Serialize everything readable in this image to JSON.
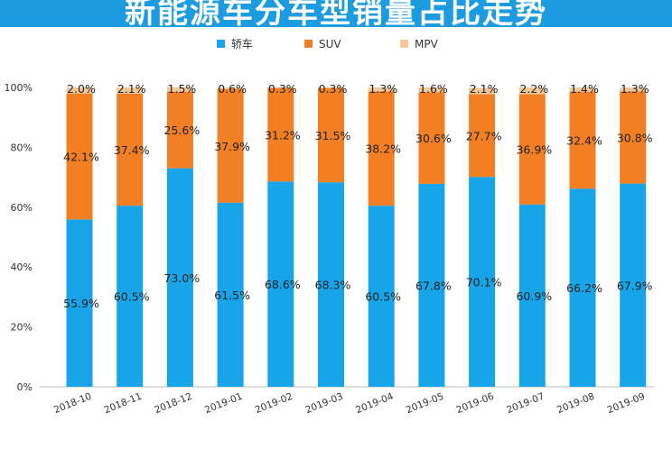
{
  "title": "新能源车分车型销量占比走势",
  "colors": {
    "title_bg": "#1b9be0"
  },
  "chart_data": {
    "type": "bar",
    "stacked": true,
    "categories": [
      "2018-10",
      "2018-11",
      "2018-12",
      "2019-01",
      "2019-02",
      "2019-03",
      "2019-04",
      "2019-05",
      "2019-06",
      "2019-07",
      "2019-08",
      "2019-09"
    ],
    "series": [
      {
        "name": "轿车",
        "color": "#18a4e8",
        "values": [
          55.9,
          60.5,
          73.0,
          61.5,
          68.6,
          68.3,
          60.5,
          67.8,
          70.1,
          60.9,
          66.2,
          67.9
        ],
        "labels": [
          "55.9%",
          "60.5%",
          "73.0%",
          "61.5%",
          "68.6%",
          "68.3%",
          "60.5%",
          "67.8%",
          "70.1%",
          "60.9%",
          "66.2%",
          "67.9%"
        ]
      },
      {
        "name": "SUV",
        "color": "#f27f23",
        "values": [
          42.1,
          37.4,
          25.6,
          37.9,
          31.2,
          31.5,
          38.2,
          30.6,
          27.7,
          36.9,
          32.4,
          30.8
        ],
        "labels": [
          "42.1%",
          "37.4%",
          "25.6%",
          "37.9%",
          "31.2%",
          "31.5%",
          "38.2%",
          "30.6%",
          "27.7%",
          "36.9%",
          "32.4%",
          "30.8%"
        ]
      },
      {
        "name": "MPV",
        "color": "#f2c79a",
        "values": [
          2.0,
          2.1,
          1.5,
          0.6,
          0.3,
          0.3,
          1.3,
          1.6,
          2.1,
          2.2,
          1.4,
          1.3
        ],
        "labels": [
          "2.0%",
          "2.1%",
          "1.5%",
          "0.6%",
          "0.3%",
          "0.3%",
          "1.3%",
          "1.6%",
          "2.1%",
          "2.2%",
          "1.4%",
          "1.3%"
        ]
      }
    ],
    "ylim": [
      0,
      100
    ],
    "yticks": [
      "0%",
      "20%",
      "40%",
      "60%",
      "80%",
      "100%"
    ],
    "grid": false,
    "legend_position": "top-center"
  }
}
